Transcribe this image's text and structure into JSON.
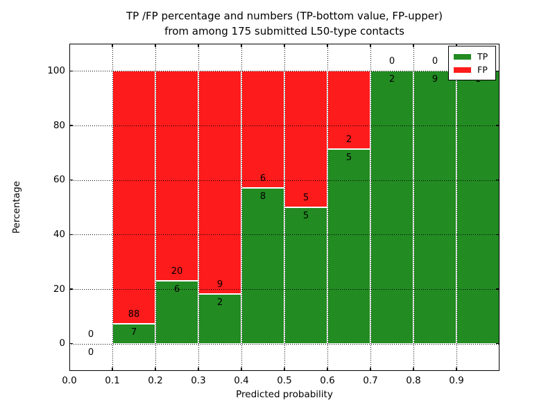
{
  "chart_data": {
    "type": "bar",
    "stacked": true,
    "title": "TP /FP percentage and numbers (TP-bottom value, FP-upper) from among 175 submitted L50-type contacts",
    "title_line1": "TP /FP percentage and numbers (TP-bottom value, FP-upper)",
    "title_line2": "from among 175 submitted L50-type contacts",
    "xlabel": "Predicted probability",
    "ylabel": "Percentage",
    "xlim": [
      0.0,
      1.0
    ],
    "ylim": [
      -10,
      110
    ],
    "xticks": [
      {
        "value": 0.0,
        "label": "0.0"
      },
      {
        "value": 0.1,
        "label": "0.1"
      },
      {
        "value": 0.2,
        "label": "0.2"
      },
      {
        "value": 0.3,
        "label": "0.3"
      },
      {
        "value": 0.4,
        "label": "0.4"
      },
      {
        "value": 0.5,
        "label": "0.5"
      },
      {
        "value": 0.6,
        "label": "0.6"
      },
      {
        "value": 0.7,
        "label": "0.7"
      },
      {
        "value": 0.8,
        "label": "0.8"
      },
      {
        "value": 0.9,
        "label": "0.9"
      }
    ],
    "yticks": [
      {
        "value": 0,
        "label": "0"
      },
      {
        "value": 20,
        "label": "20"
      },
      {
        "value": 40,
        "label": "40"
      },
      {
        "value": 60,
        "label": "60"
      },
      {
        "value": 80,
        "label": "80"
      },
      {
        "value": 100,
        "label": "100"
      }
    ],
    "grid": "dotted",
    "grid_color": "#000000",
    "bar_edge_color": "#ffffff",
    "colors": {
      "tp": "#228b22",
      "fp": "#fd1b1b"
    },
    "legend": {
      "position": "upper right",
      "items": [
        {
          "label": "TP",
          "color": "#228b22"
        },
        {
          "label": "FP",
          "color": "#fd1b1b"
        }
      ]
    },
    "total_contacts": 175,
    "bins": [
      {
        "x_start": 0.0,
        "x_end": 0.1,
        "tp_count": 0,
        "fp_count": 0,
        "tp_pct": 0,
        "fp_pct": 0
      },
      {
        "x_start": 0.1,
        "x_end": 0.2,
        "tp_count": 7,
        "fp_count": 88,
        "tp_pct": 7.37,
        "fp_pct": 92.63
      },
      {
        "x_start": 0.2,
        "x_end": 0.3,
        "tp_count": 6,
        "fp_count": 20,
        "tp_pct": 23.08,
        "fp_pct": 76.92
      },
      {
        "x_start": 0.3,
        "x_end": 0.4,
        "tp_count": 2,
        "fp_count": 9,
        "tp_pct": 18.18,
        "fp_pct": 81.82
      },
      {
        "x_start": 0.4,
        "x_end": 0.5,
        "tp_count": 8,
        "fp_count": 6,
        "tp_pct": 57.14,
        "fp_pct": 42.86
      },
      {
        "x_start": 0.5,
        "x_end": 0.6,
        "tp_count": 5,
        "fp_count": 5,
        "tp_pct": 50,
        "fp_pct": 50
      },
      {
        "x_start": 0.6,
        "x_end": 0.7,
        "tp_count": 5,
        "fp_count": 2,
        "tp_pct": 71.43,
        "fp_pct": 28.57
      },
      {
        "x_start": 0.7,
        "x_end": 0.8,
        "tp_count": 2,
        "fp_count": 0,
        "tp_pct": 100,
        "fp_pct": 0
      },
      {
        "x_start": 0.8,
        "x_end": 0.9,
        "tp_count": 9,
        "fp_count": 0,
        "tp_pct": 100,
        "fp_pct": 0
      },
      {
        "x_start": 0.9,
        "x_end": 1.0,
        "tp_count": 1,
        "fp_count": 0,
        "tp_pct": 100,
        "fp_pct": 0
      }
    ]
  }
}
